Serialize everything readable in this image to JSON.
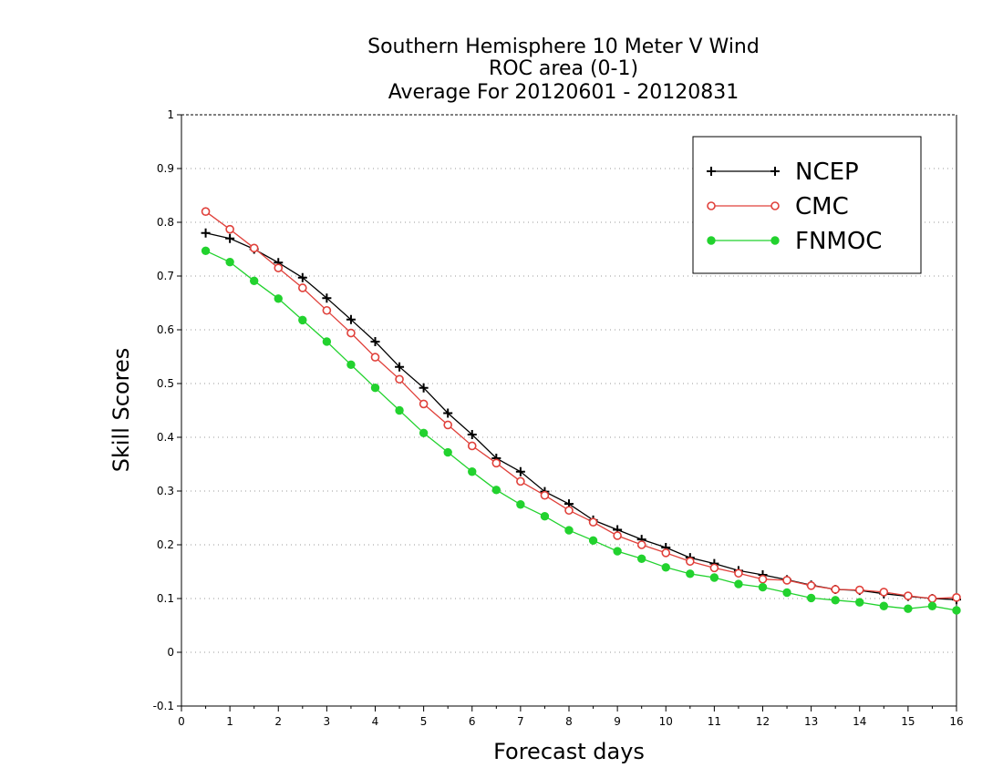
{
  "chart_data": {
    "type": "line",
    "title_lines": [
      "Southern Hemisphere 10 Meter V Wind",
      "ROC area (0-1)",
      "Average For 20120601 - 20120831"
    ],
    "xlabel": "Forecast days",
    "ylabel": "Skill Scores",
    "xlim": [
      0,
      16
    ],
    "ylim": [
      -0.1,
      1
    ],
    "x_ticks": [
      0,
      1,
      2,
      3,
      4,
      5,
      6,
      7,
      8,
      9,
      10,
      11,
      12,
      13,
      14,
      15,
      16
    ],
    "y_ticks": [
      -0.1,
      0,
      0.1,
      0.2,
      0.3,
      0.4,
      0.5,
      0.6,
      0.7,
      0.8,
      0.9,
      1
    ],
    "y_tick_labels": [
      "-0.1",
      "0",
      "0.1",
      "0.2",
      "0.3",
      "0.4",
      "0.5",
      "0.6",
      "0.7",
      "0.8",
      "0.9",
      "1"
    ],
    "grid": "horizontal dotted",
    "legend_position": "top-right",
    "x": [
      0.5,
      1,
      1.5,
      2,
      2.5,
      3,
      3.5,
      4,
      4.5,
      5,
      5.5,
      6,
      6.5,
      7,
      7.5,
      8,
      8.5,
      9,
      9.5,
      10,
      10.5,
      11,
      11.5,
      12,
      12.5,
      13,
      13.5,
      14,
      14.5,
      15,
      15.5,
      16
    ],
    "series": [
      {
        "name": "NCEP",
        "color": "#000000",
        "marker": "plus",
        "values": [
          0.78,
          0.77,
          0.75,
          0.725,
          0.697,
          0.659,
          0.619,
          0.578,
          0.531,
          0.492,
          0.445,
          0.405,
          0.361,
          0.336,
          0.299,
          0.276,
          0.246,
          0.228,
          0.21,
          0.195,
          0.176,
          0.165,
          0.152,
          0.144,
          0.135,
          0.125,
          0.117,
          0.115,
          0.109,
          0.104,
          0.1,
          0.098
        ]
      },
      {
        "name": "CMC",
        "color": "#e0403a",
        "marker": "open-circle",
        "values": [
          0.82,
          0.787,
          0.752,
          0.715,
          0.678,
          0.636,
          0.594,
          0.549,
          0.508,
          0.462,
          0.423,
          0.384,
          0.352,
          0.318,
          0.292,
          0.264,
          0.242,
          0.217,
          0.2,
          0.185,
          0.169,
          0.157,
          0.147,
          0.136,
          0.134,
          0.124,
          0.117,
          0.116,
          0.112,
          0.105,
          0.1,
          0.102
        ]
      },
      {
        "name": "FNMOC",
        "color": "#22d22e",
        "marker": "filled-circle",
        "values": [
          0.747,
          0.726,
          0.691,
          0.658,
          0.618,
          0.578,
          0.535,
          0.492,
          0.45,
          0.408,
          0.372,
          0.336,
          0.302,
          0.275,
          0.253,
          0.227,
          0.208,
          0.188,
          0.174,
          0.158,
          0.146,
          0.139,
          0.127,
          0.121,
          0.111,
          0.101,
          0.097,
          0.093,
          0.086,
          0.081,
          0.086,
          0.078
        ]
      }
    ]
  }
}
